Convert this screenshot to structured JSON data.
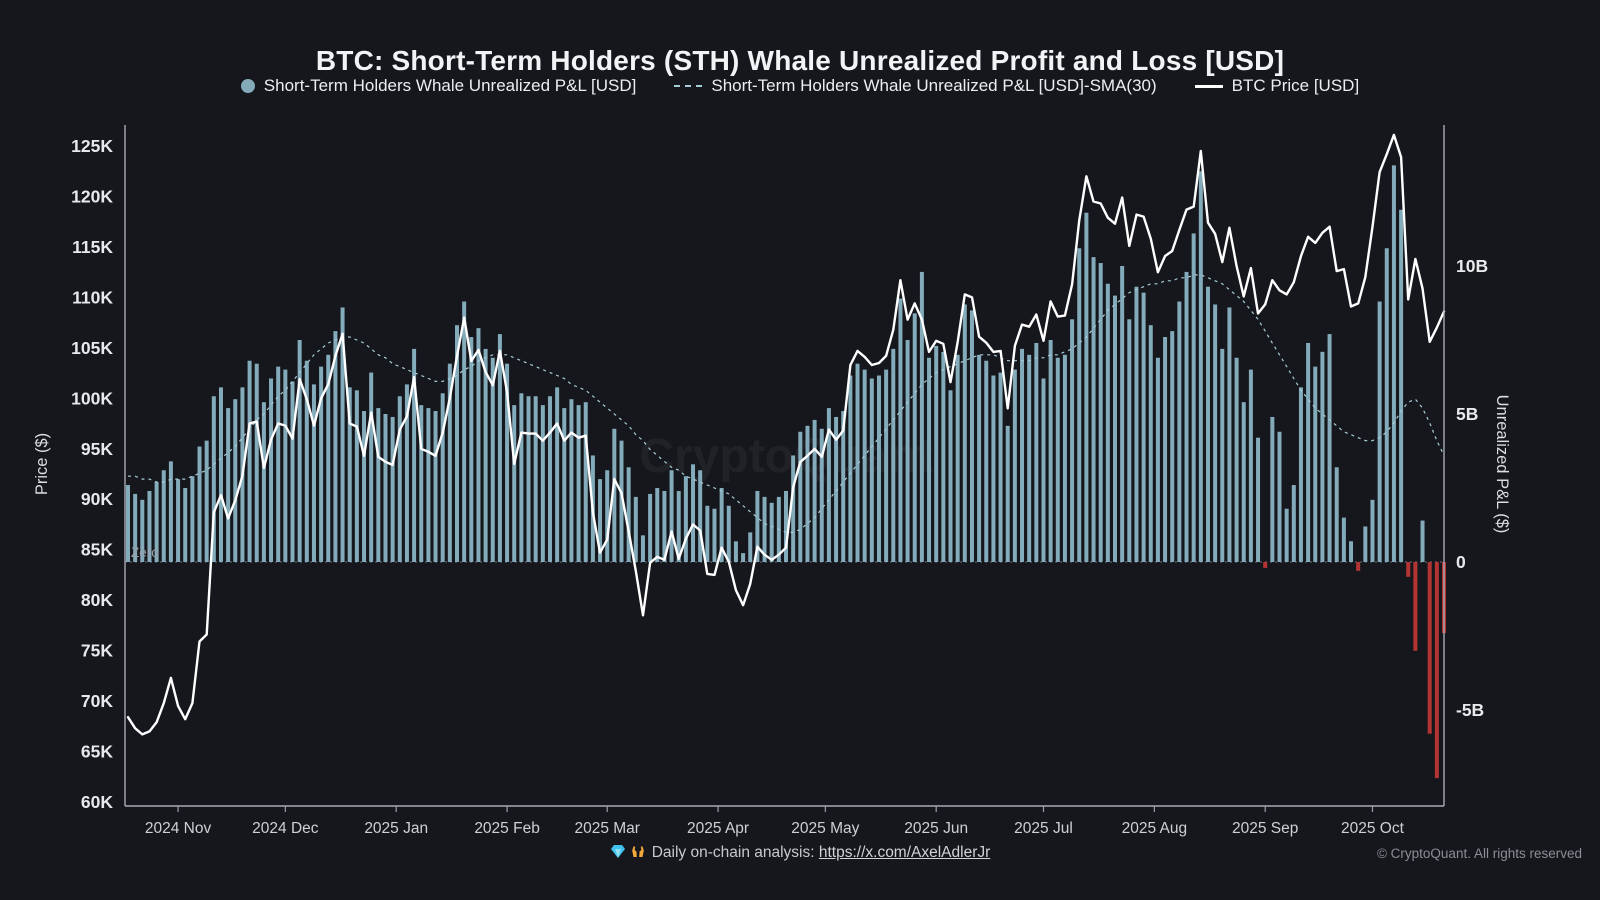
{
  "title": "BTC: Short-Term Holders (STH) Whale Unrealized Profit and Loss [USD]",
  "legend": {
    "items": [
      {
        "label": "Short-Term Holders Whale Unrealized P&L [USD]",
        "marker": "dot",
        "color": "#83abba"
      },
      {
        "label": "Short-Term Holders Whale Unrealized P&L [USD]-SMA(30)",
        "marker": "dashed-line",
        "color": "#a6ccd6"
      },
      {
        "label": "BTC Price [USD]",
        "marker": "solid-line",
        "color": "#ffffff"
      }
    ]
  },
  "footer": {
    "icons": [
      "💎",
      "🙌"
    ],
    "text": "Daily on-chain analysis:",
    "link_text": "https://x.com/AxelAdlerJr",
    "copyright": "© CryptoQuant. All rights reserved"
  },
  "watermark": "CryptoQuant",
  "zero_label": "Zero",
  "chart_data": {
    "type": "mixed",
    "sampling": "approx. every 2 days, 2024-10-18 through 2025-10-21",
    "x_tick_labels": [
      "2024 Nov",
      "2024 Dec",
      "2025 Jan",
      "2025 Feb",
      "2025 Mar",
      "2025 Apr",
      "2025 May",
      "2025 Jun",
      "2025 Jul",
      "2025 Aug",
      "2025 Sep",
      "2025 Oct"
    ],
    "x_tick_indices": [
      7,
      22,
      37.5,
      53,
      67,
      82.5,
      97.5,
      113,
      128,
      143.5,
      159,
      174
    ],
    "left_axis": {
      "label": "Price ($)",
      "tick_labels": [
        "125K",
        "120K",
        "115K",
        "110K",
        "105K",
        "100K",
        "95K",
        "90K",
        "85K",
        "80K",
        "75K",
        "70K",
        "65K",
        "60K"
      ],
      "tick_values_K": [
        125,
        120,
        115,
        110,
        105,
        100,
        95,
        90,
        85,
        80,
        75,
        70,
        65,
        60
      ],
      "range_K": [
        60,
        125
      ]
    },
    "right_axis": {
      "label": "Unrealized P&L ($)",
      "tick_labels": [
        "10B",
        "5B",
        "0",
        "-5B"
      ],
      "tick_values_B": [
        10,
        5,
        0,
        -5
      ]
    },
    "series": [
      {
        "name": "Short-Term Holders Whale Unrealized P&L [USD]",
        "type": "bar",
        "axis": "right",
        "unit": "billion USD",
        "color_positive": "#83abba",
        "color_negative": "#b43434",
        "values": [
          2.6,
          2.3,
          2.1,
          2.4,
          2.7,
          3.1,
          3.4,
          2.8,
          2.5,
          2.9,
          3.9,
          4.1,
          5.6,
          5.9,
          5.2,
          5.5,
          5.9,
          6.8,
          6.7,
          5.4,
          6.2,
          6.6,
          6.5,
          6.1,
          7.5,
          6.8,
          6.0,
          6.6,
          7.0,
          7.8,
          8.6,
          5.9,
          5.8,
          5.1,
          6.4,
          5.2,
          5.0,
          4.9,
          5.6,
          6.0,
          7.2,
          5.3,
          5.2,
          5.1,
          5.7,
          6.7,
          8.0,
          8.8,
          7.6,
          7.9,
          7.2,
          6.9,
          7.7,
          6.7,
          5.3,
          5.7,
          5.6,
          5.6,
          5.3,
          5.6,
          5.9,
          5.2,
          5.5,
          5.3,
          5.4,
          3.6,
          2.8,
          3.1,
          4.5,
          4.1,
          3.2,
          2.2,
          0.9,
          2.3,
          2.5,
          2.4,
          3.1,
          2.4,
          2.9,
          3.3,
          3.1,
          1.9,
          1.8,
          2.5,
          1.9,
          0.7,
          0.3,
          1.0,
          2.4,
          2.2,
          2.0,
          2.2,
          2.4,
          3.6,
          4.4,
          4.6,
          4.8,
          4.5,
          5.2,
          4.9,
          5.1,
          6.3,
          6.7,
          6.5,
          6.2,
          6.3,
          6.5,
          7.2,
          8.9,
          7.5,
          8.4,
          9.8,
          6.9,
          7.3,
          7.1,
          5.8,
          7.0,
          8.7,
          8.5,
          7.0,
          6.8,
          6.3,
          6.4,
          4.6,
          6.5,
          7.2,
          7.0,
          7.4,
          6.2,
          7.5,
          6.9,
          7.0,
          8.2,
          10.6,
          11.8,
          10.3,
          10.1,
          9.4,
          9.0,
          10.0,
          8.2,
          9.3,
          9.1,
          8.0,
          6.9,
          7.6,
          7.8,
          8.8,
          9.8,
          11.1,
          13.2,
          9.3,
          8.7,
          7.2,
          8.6,
          6.9,
          5.4,
          6.5,
          4.2,
          -0.2,
          4.9,
          4.4,
          1.8,
          2.6,
          5.9,
          7.4,
          6.6,
          7.1,
          7.7,
          3.2,
          1.5,
          0.7,
          -0.3,
          1.2,
          2.1,
          8.8,
          10.6,
          13.4,
          11.9,
          -0.5,
          -3.0,
          1.4,
          -5.8,
          -7.3,
          -2.4
        ]
      },
      {
        "name": "Short-Term Holders Whale Unrealized P&L [USD]-SMA(30)",
        "type": "line",
        "style": "dashed",
        "axis": "right",
        "unit": "billion USD",
        "color": "#a6ccd6",
        "values": [
          2.9,
          2.9,
          2.8,
          2.8,
          2.7,
          2.7,
          2.8,
          2.8,
          2.8,
          2.9,
          3.0,
          3.1,
          3.3,
          3.5,
          3.7,
          3.9,
          4.2,
          4.5,
          4.8,
          5.0,
          5.3,
          5.6,
          5.8,
          6.1,
          6.4,
          6.7,
          7.0,
          7.2,
          7.4,
          7.5,
          7.6,
          7.6,
          7.5,
          7.4,
          7.2,
          7.0,
          6.9,
          6.7,
          6.6,
          6.5,
          6.4,
          6.3,
          6.2,
          6.1,
          6.1,
          6.2,
          6.3,
          6.5,
          6.6,
          6.8,
          6.9,
          7.0,
          7.0,
          7.0,
          6.9,
          6.8,
          6.7,
          6.6,
          6.5,
          6.4,
          6.3,
          6.2,
          6.0,
          5.9,
          5.8,
          5.6,
          5.4,
          5.2,
          5.0,
          4.8,
          4.6,
          4.3,
          4.1,
          3.8,
          3.6,
          3.4,
          3.2,
          3.1,
          2.9,
          2.8,
          2.7,
          2.6,
          2.5,
          2.4,
          2.3,
          2.1,
          1.9,
          1.7,
          1.5,
          1.3,
          1.2,
          1.1,
          1.0,
          1.0,
          1.1,
          1.3,
          1.5,
          1.8,
          2.1,
          2.4,
          2.7,
          3.0,
          3.3,
          3.6,
          3.9,
          4.2,
          4.5,
          4.8,
          5.1,
          5.4,
          5.7,
          6.0,
          6.2,
          6.4,
          6.5,
          6.6,
          6.7,
          6.8,
          6.9,
          7.0,
          7.0,
          7.0,
          6.9,
          6.8,
          6.8,
          6.8,
          6.8,
          6.9,
          6.9,
          7.0,
          7.0,
          7.1,
          7.2,
          7.4,
          7.6,
          7.9,
          8.2,
          8.5,
          8.7,
          8.9,
          9.1,
          9.2,
          9.3,
          9.4,
          9.4,
          9.5,
          9.5,
          9.6,
          9.6,
          9.7,
          9.7,
          9.6,
          9.5,
          9.4,
          9.2,
          9.0,
          8.8,
          8.5,
          8.2,
          7.8,
          7.4,
          7.0,
          6.6,
          6.2,
          5.8,
          5.5,
          5.2,
          5.0,
          4.8,
          4.6,
          4.4,
          4.3,
          4.2,
          4.1,
          4.1,
          4.2,
          4.4,
          4.7,
          5.1,
          5.4,
          5.5,
          5.2,
          4.7,
          4.1,
          3.6
        ]
      },
      {
        "name": "BTC Price [USD]",
        "type": "line",
        "axis": "left",
        "unit": "thousand USD",
        "color": "#ffffff",
        "values": [
          68.4,
          67.3,
          66.7,
          67.0,
          67.9,
          69.8,
          72.3,
          69.5,
          68.2,
          69.8,
          75.9,
          76.6,
          88.7,
          90.4,
          88.1,
          89.9,
          92.3,
          97.5,
          97.7,
          93.1,
          95.9,
          97.5,
          97.3,
          96.0,
          101.9,
          99.9,
          97.3,
          100.0,
          101.4,
          104.2,
          106.4,
          97.5,
          97.2,
          94.3,
          98.6,
          94.2,
          93.7,
          93.4,
          96.9,
          98.2,
          102.1,
          95.0,
          94.7,
          94.3,
          96.6,
          100.0,
          104.2,
          108.0,
          103.7,
          104.8,
          102.6,
          101.3,
          104.7,
          100.6,
          93.5,
          96.6,
          96.5,
          96.5,
          95.8,
          96.6,
          97.5,
          95.8,
          96.6,
          96.1,
          96.3,
          88.7,
          84.7,
          86.0,
          92.0,
          90.6,
          86.8,
          82.9,
          78.5,
          83.7,
          84.3,
          84.0,
          86.8,
          84.1,
          86.1,
          87.5,
          86.9,
          82.6,
          82.5,
          85.2,
          83.8,
          81.0,
          79.5,
          81.6,
          85.3,
          84.5,
          84.0,
          84.5,
          85.2,
          91.2,
          93.7,
          94.3,
          95.0,
          94.2,
          96.9,
          95.9,
          96.8,
          103.3,
          104.7,
          104.1,
          103.3,
          103.5,
          104.2,
          106.8,
          111.7,
          107.8,
          109.4,
          107.8,
          104.6,
          105.7,
          105.4,
          101.6,
          105.6,
          110.3,
          110.0,
          106.1,
          105.5,
          104.6,
          104.7,
          99.0,
          105.2,
          107.3,
          107.1,
          108.3,
          105.7,
          109.6,
          108.1,
          108.2,
          111.3,
          117.6,
          122.0,
          119.5,
          119.3,
          117.9,
          117.3,
          119.9,
          115.1,
          118.2,
          118.0,
          115.8,
          112.5,
          114.1,
          114.6,
          116.7,
          118.7,
          119.0,
          124.5,
          117.4,
          116.3,
          113.5,
          116.9,
          113.1,
          110.1,
          112.9,
          108.4,
          109.3,
          111.7,
          110.7,
          110.3,
          111.5,
          114.1,
          116.0,
          115.4,
          116.4,
          117.0,
          112.6,
          112.8,
          109.1,
          109.4,
          112.0,
          117.0,
          122.4,
          124.2,
          126.1,
          123.9,
          109.8,
          113.8,
          110.9,
          105.6,
          107.0,
          108.6
        ]
      }
    ]
  }
}
